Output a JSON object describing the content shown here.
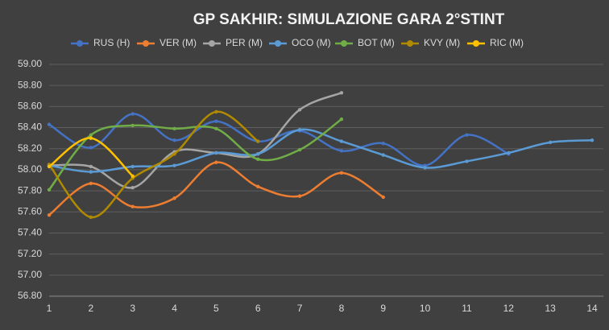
{
  "chart_data": {
    "type": "line",
    "title": "GP SAKHIR: SIMULAZIONE GARA 2°STINT",
    "categories": [
      "1",
      "2",
      "3",
      "4",
      "5",
      "6",
      "7",
      "8",
      "9",
      "10",
      "11",
      "12",
      "13",
      "14"
    ],
    "series": [
      {
        "name": "RUS (H)",
        "color": "#4472c4",
        "values": [
          58.43,
          58.21,
          58.53,
          58.28,
          58.46,
          58.27,
          58.37,
          58.18,
          58.25,
          58.04,
          58.33,
          58.15,
          null,
          null
        ]
      },
      {
        "name": "VER (M)",
        "color": "#ed7d31",
        "values": [
          57.57,
          57.87,
          57.65,
          57.73,
          58.07,
          57.84,
          57.75,
          57.97,
          57.74,
          null,
          null,
          null,
          null,
          null
        ]
      },
      {
        "name": "PER (M)",
        "color": "#a5a5a5",
        "values": [
          58.04,
          58.03,
          57.83,
          58.17,
          58.16,
          58.15,
          58.57,
          58.73,
          null,
          null,
          null,
          null,
          null,
          null
        ]
      },
      {
        "name": "OCO (M)",
        "color": "#5b9bd5",
        "values": [
          58.04,
          57.98,
          58.03,
          58.04,
          58.16,
          58.15,
          58.38,
          58.27,
          58.14,
          58.02,
          58.08,
          58.16,
          58.26,
          58.28
        ]
      },
      {
        "name": "BOT (M)",
        "color": "#70ad47",
        "values": [
          57.81,
          58.33,
          58.42,
          58.39,
          58.39,
          58.1,
          58.19,
          58.48,
          null,
          null,
          null,
          null,
          null,
          null
        ]
      },
      {
        "name": "KVY (M)",
        "color": "#b08a00",
        "values": [
          58.05,
          57.55,
          57.92,
          58.15,
          58.55,
          58.27,
          null,
          null,
          null,
          null,
          null,
          null,
          null,
          null
        ]
      },
      {
        "name": "RIC (M)",
        "color": "#ffc000",
        "values": [
          58.03,
          58.3,
          57.94,
          null,
          null,
          null,
          null,
          null,
          null,
          null,
          null,
          null,
          null,
          null
        ]
      }
    ],
    "ylim": [
      56.8,
      59
    ],
    "yticks": [
      {
        "value": 56.8,
        "label": "56.80"
      },
      {
        "value": 57,
        "label": "57.00"
      },
      {
        "value": 57.2,
        "label": "57.20"
      },
      {
        "value": 57.4,
        "label": "57.40"
      },
      {
        "value": 57.6,
        "label": "57.60"
      },
      {
        "value": 57.8,
        "label": "57.80"
      },
      {
        "value": 58,
        "label": "58.00"
      },
      {
        "value": 58.2,
        "label": "58.20"
      },
      {
        "value": 58.4,
        "label": "58.40"
      },
      {
        "value": 58.6,
        "label": "58.60"
      },
      {
        "value": 58.8,
        "label": "58.80"
      },
      {
        "value": 59,
        "label": "59.00"
      }
    ],
    "grid": true,
    "legend": "top"
  }
}
